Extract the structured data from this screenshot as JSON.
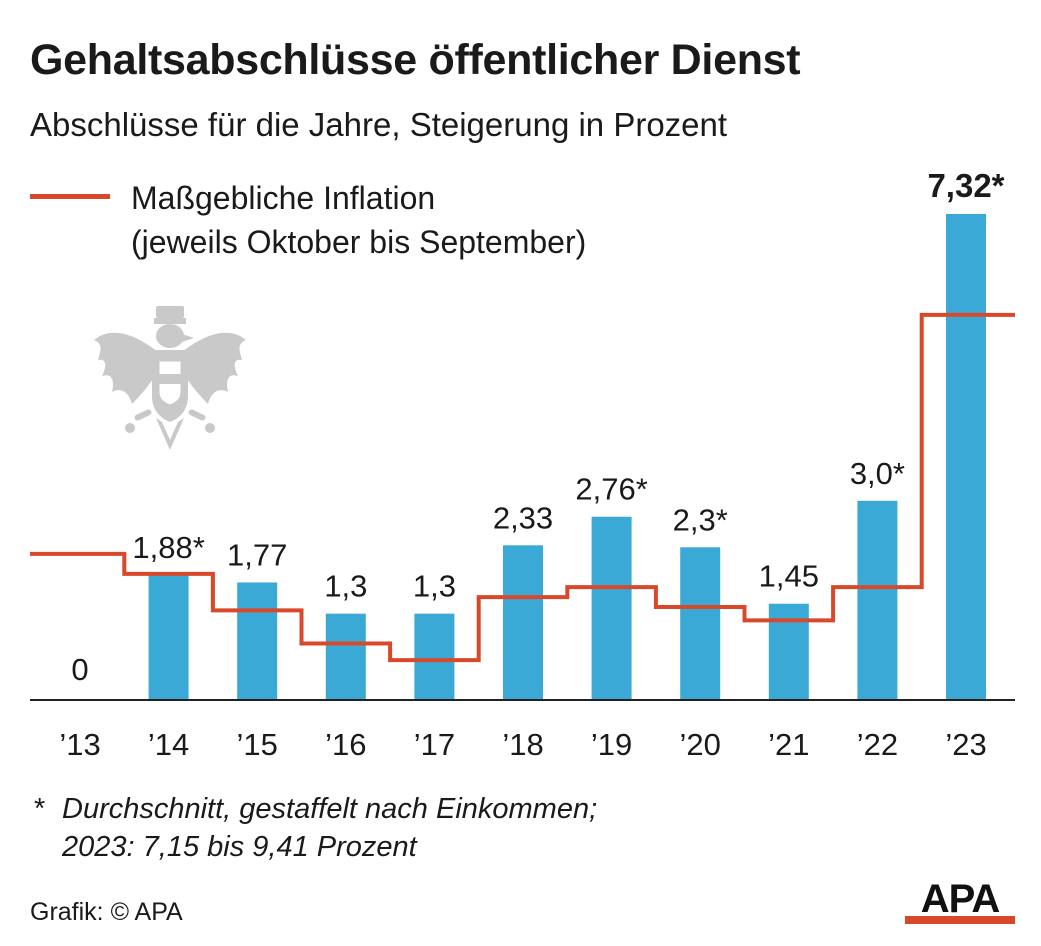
{
  "title": "Gehaltsabschlüsse öffentlicher Dienst",
  "subtitle": "Abschlüsse für die Jahre, Steigerung in Prozent",
  "legend": {
    "line1": "Maßgebliche Inflation",
    "line2": "(jeweils Oktober bis September)"
  },
  "colors": {
    "bar": "#3aa9d6",
    "inflation_line": "#d8492b",
    "text": "#1a1a1a",
    "emblem": "#c9c9c9"
  },
  "chart_data": {
    "type": "bar",
    "categories": [
      "’13",
      "’14",
      "’15",
      "’16",
      "’17",
      "’18",
      "’19",
      "’20",
      "’21",
      "’22",
      "’23"
    ],
    "values": [
      0,
      1.88,
      1.77,
      1.3,
      1.3,
      2.33,
      2.76,
      2.3,
      1.45,
      3.0,
      7.32
    ],
    "value_labels": [
      "0",
      "1,88*",
      "1,77",
      "1,3",
      "1,3",
      "2,33",
      "2,76*",
      "2,3*",
      "1,45",
      "3,0*",
      "7,32*"
    ],
    "highlight_label_index": 10,
    "series": [
      {
        "type": "step-line",
        "values": [
          2.2,
          1.9,
          1.35,
          0.85,
          0.6,
          1.55,
          1.7,
          1.4,
          1.2,
          1.7,
          5.8
        ]
      }
    ],
    "ylim": [
      0,
      8
    ],
    "grid": false
  },
  "footnote": {
    "marker": "*",
    "line1": "Durchschnitt, gestaffelt nach Einkommen;",
    "line2": "2023: 7,15 bis 9,41 Prozent"
  },
  "credit": "Grafik: © APA",
  "logo": "APA"
}
